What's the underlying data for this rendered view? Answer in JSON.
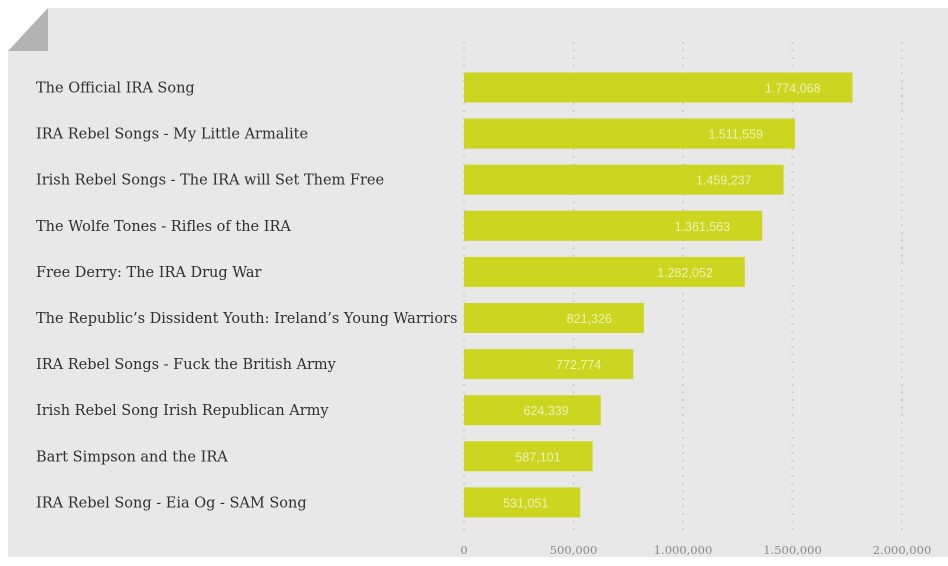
{
  "chart_data": {
    "type": "bar",
    "orientation": "horizontal",
    "categories": [
      "The Official IRA Song",
      "IRA Rebel Songs - My Little Armalite",
      "Irish Rebel Songs - The IRA will Set Them Free",
      "The Wolfe Tones - Rifles of the IRA",
      "Free Derry: The IRA Drug War",
      "The Republic’s Dissident Youth: Ireland’s Young Warriors",
      "IRA Rebel Songs - Fuck the British Army",
      "Irish Rebel Song Irish Republican Army",
      "Bart Simpson and the IRA",
      "IRA Rebel Song - Eia Og - SAM Song"
    ],
    "values": [
      1774068,
      1511559,
      1459237,
      1361563,
      1282052,
      821326,
      772774,
      624339,
      587101,
      531051
    ],
    "value_labels": [
      "1.774,068",
      "1.511,559",
      "1.459,237",
      "1.361,563",
      "1.282,052",
      "821,326",
      "772,774",
      "624,339",
      "587,101",
      "531,051"
    ],
    "xlim": [
      0,
      2000000
    ],
    "x_ticks": [
      0,
      500000,
      1000000,
      1500000,
      2000000
    ],
    "x_tick_labels": [
      "0",
      "500,000",
      "1.000,000",
      "1.500,000",
      "2.000,000"
    ],
    "title": "",
    "xlabel": "",
    "ylabel": "",
    "grid": true,
    "bar_color": "#ccd51f",
    "value_label_color": "#eef3b4",
    "background_color": "#e8e8e9"
  }
}
